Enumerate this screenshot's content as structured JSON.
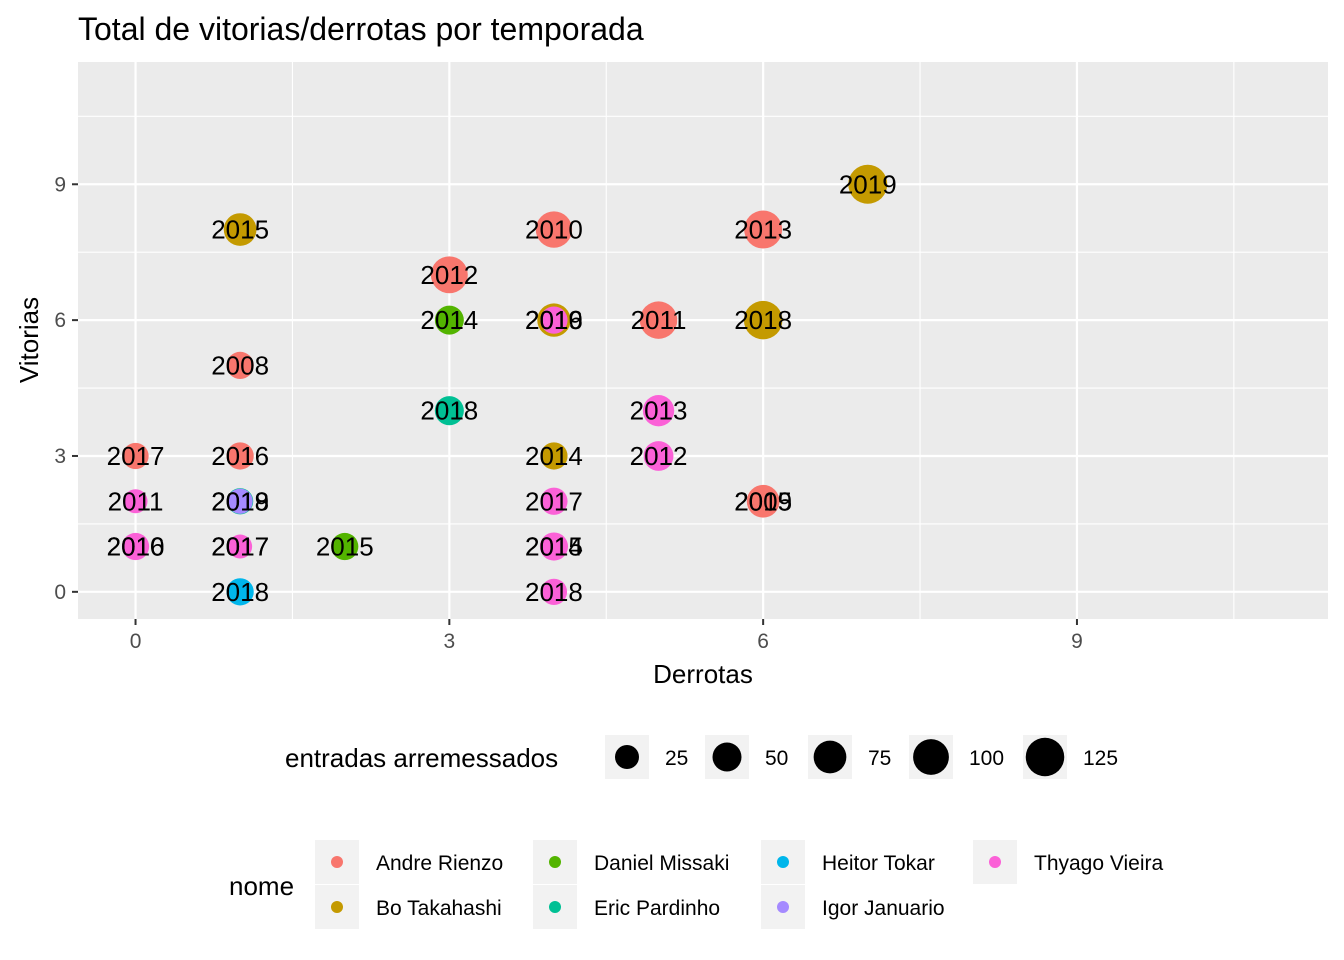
{
  "chart_data": {
    "type": "scatter",
    "title": "Total de vitorias/derrotas por temporada",
    "xlabel": "Derrotas",
    "ylabel": "Vitorias",
    "xlim": [
      -0.55,
      11.4
    ],
    "ylim": [
      -0.6,
      11.7
    ],
    "x_ticks": [
      0,
      3,
      6,
      9
    ],
    "y_ticks": [
      0,
      3,
      6,
      9
    ],
    "grid": true,
    "legend_position": "bottom",
    "size_legend": {
      "title": "entradas arremessados",
      "values": [
        25,
        50,
        75,
        100,
        125
      ]
    },
    "color_legend": {
      "title": "nome",
      "entries": [
        {
          "name": "Andre Rienzo",
          "color": "#F8766D"
        },
        {
          "name": "Bo Takahashi",
          "color": "#C49A00"
        },
        {
          "name": "Daniel Missaki",
          "color": "#53B400"
        },
        {
          "name": "Eric Pardinho",
          "color": "#00C094"
        },
        {
          "name": "Heitor Tokar",
          "color": "#00B6EB"
        },
        {
          "name": "Igor Januario",
          "color": "#A58AFF"
        },
        {
          "name": "Thyago Vieira",
          "color": "#FB61D7"
        }
      ]
    },
    "points": [
      {
        "nome": "Andre Rienzo",
        "season": "2008",
        "x": 1,
        "y": 5,
        "size": 40
      },
      {
        "nome": "Andre Rienzo",
        "season": "2009",
        "x": 6,
        "y": 2,
        "size": 55
      },
      {
        "nome": "Andre Rienzo",
        "season": "2010",
        "x": 4,
        "y": 8,
        "size": 105
      },
      {
        "nome": "Andre Rienzo",
        "season": "2011",
        "x": 5,
        "y": 6,
        "size": 115
      },
      {
        "nome": "Andre Rienzo",
        "season": "2012",
        "x": 3,
        "y": 7,
        "size": 110
      },
      {
        "nome": "Andre Rienzo",
        "season": "2013",
        "x": 6,
        "y": 8,
        "size": 120
      },
      {
        "nome": "Andre Rienzo",
        "season": "2015",
        "x": 6,
        "y": 2,
        "size": 75
      },
      {
        "nome": "Andre Rienzo",
        "season": "2016",
        "x": 1,
        "y": 3,
        "size": 40
      },
      {
        "nome": "Andre Rienzo",
        "season": "2017",
        "x": 0,
        "y": 3,
        "size": 35
      },
      {
        "nome": "Bo Takahashi",
        "season": "2014",
        "x": 4,
        "y": 3,
        "size": 40
      },
      {
        "nome": "Bo Takahashi",
        "season": "2015",
        "x": 1,
        "y": 8,
        "size": 75
      },
      {
        "nome": "Bo Takahashi",
        "season": "2016",
        "x": 4,
        "y": 6,
        "size": 80
      },
      {
        "nome": "Bo Takahashi",
        "season": "2018",
        "x": 6,
        "y": 6,
        "size": 125
      },
      {
        "nome": "Bo Takahashi",
        "season": "2019",
        "x": 7,
        "y": 9,
        "size": 130
      },
      {
        "nome": "Daniel Missaki",
        "season": "2014",
        "x": 3,
        "y": 6,
        "size": 50
      },
      {
        "nome": "Daniel Missaki",
        "season": "2015",
        "x": 2,
        "y": 1,
        "size": 40
      },
      {
        "nome": "Eric Pardinho",
        "season": "2018",
        "x": 3,
        "y": 4,
        "size": 50
      },
      {
        "nome": "Eric Pardinho",
        "season": "2019",
        "x": 1,
        "y": 2,
        "size": 35
      },
      {
        "nome": "Heitor Tokar",
        "season": "2018",
        "x": 1,
        "y": 0,
        "size": 40
      },
      {
        "nome": "Igor Januario",
        "season": "2018",
        "x": 1,
        "y": 2,
        "size": 30
      },
      {
        "nome": "Igor Januario",
        "season": "2017",
        "x": 1,
        "y": 1,
        "size": 20
      },
      {
        "nome": "Thyago Vieira",
        "season": "2010",
        "x": 0,
        "y": 1,
        "size": 40
      },
      {
        "nome": "Thyago Vieira",
        "season": "2011",
        "x": 0,
        "y": 2,
        "size": 25
      },
      {
        "nome": "Thyago Vieira",
        "season": "2012",
        "x": 5,
        "y": 3,
        "size": 55
      },
      {
        "nome": "Thyago Vieira",
        "season": "2013",
        "x": 5,
        "y": 4,
        "size": 65
      },
      {
        "nome": "Thyago Vieira",
        "season": "2014",
        "x": 4,
        "y": 1,
        "size": 45
      },
      {
        "nome": "Thyago Vieira",
        "season": "2015",
        "x": 4,
        "y": 1,
        "size": 40
      },
      {
        "nome": "Thyago Vieira",
        "season": "2016",
        "x": 0,
        "y": 1,
        "size": 35
      },
      {
        "nome": "Thyago Vieira",
        "season": "2017",
        "x": 1,
        "y": 1,
        "size": 25
      },
      {
        "nome": "Thyago Vieira",
        "season": "2018",
        "x": 4,
        "y": 0,
        "size": 35
      },
      {
        "nome": "Thyago Vieira",
        "season": "2019",
        "x": 4,
        "y": 6,
        "size": 40
      },
      {
        "nome": "Thyago Vieira",
        "season": "2017",
        "x": 4,
        "y": 2,
        "size": 40
      }
    ]
  }
}
